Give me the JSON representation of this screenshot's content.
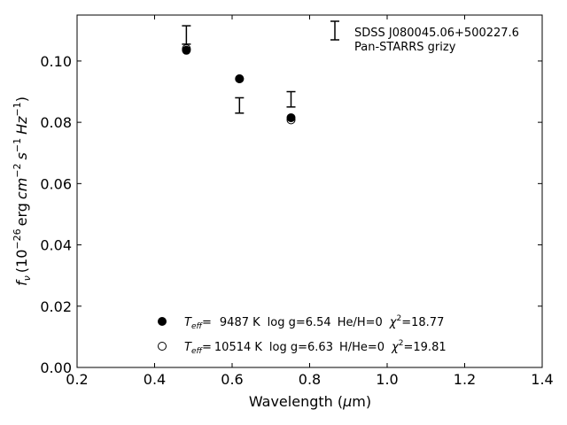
{
  "chart_data": {
    "type": "scatter",
    "title": "",
    "xlabel": {
      "text": "Wavelength (",
      "unit_symbol": "μ",
      "unit_suffix": "m)"
    },
    "ylabel": {
      "prefix_symbol": "f",
      "prefix_sub": "ν",
      "open": "(10",
      "exp1": "−26",
      "unit_erg": "erg",
      "unit_cm": "cm",
      "exp2": "−2",
      "unit_s": "s",
      "exp3": "−1",
      "unit_hz": "Hz",
      "exp4": "−1",
      "close": ")"
    },
    "xlim": [
      0.2,
      1.4
    ],
    "ylim": [
      0.0,
      0.115
    ],
    "xticks": [
      0.2,
      0.4,
      0.6,
      0.8,
      1.0,
      1.2,
      1.4
    ],
    "xtick_labels": [
      "0.2",
      "0.4",
      "0.6",
      "0.8",
      "1.0",
      "1.2",
      "1.4"
    ],
    "yticks": [
      0.0,
      0.02,
      0.04,
      0.06,
      0.08,
      0.1
    ],
    "ytick_labels": [
      "0.00",
      "0.02",
      "0.04",
      "0.06",
      "0.08",
      "0.10"
    ],
    "grid": false,
    "observed": {
      "name_line1": "SDSS J080045.06+500227.6",
      "name_line2": "Pan-STARRS grizy",
      "points": [
        {
          "x": 0.482,
          "y": 0.1085,
          "yerr": 0.003
        },
        {
          "x": 0.619,
          "y": 0.0855,
          "yerr": 0.0025
        },
        {
          "x": 0.752,
          "y": 0.0875,
          "yerr": 0.0025
        }
      ],
      "color": "#000000",
      "legend_location": "top-right"
    },
    "series": [
      {
        "teff_symbol": "T",
        "teff_sub": "eff",
        "teff_eq": "=",
        "teff_value": "9487 K",
        "logg": "log g=6.54",
        "comp": "He/H=0",
        "chi_symbol": "χ",
        "chi_sup": "2",
        "chi_value": "=18.77",
        "marker": "filled",
        "color": "#000000",
        "points": [
          {
            "x": 0.482,
            "y": 0.1035
          },
          {
            "x": 0.619,
            "y": 0.0942
          },
          {
            "x": 0.752,
            "y": 0.0815
          }
        ]
      },
      {
        "teff_symbol": "T",
        "teff_sub": "eff",
        "teff_eq": "=",
        "teff_value": "10514 K",
        "logg": "log g=6.63",
        "comp": "H/He=0",
        "chi_symbol": "χ",
        "chi_sup": "2",
        "chi_value": "=19.81",
        "marker": "open",
        "color": "#000000",
        "points": [
          {
            "x": 0.482,
            "y": 0.104
          },
          {
            "x": 0.619,
            "y": 0.0942
          },
          {
            "x": 0.752,
            "y": 0.0808
          }
        ]
      }
    ],
    "model_legend_location": "bottom-center"
  }
}
